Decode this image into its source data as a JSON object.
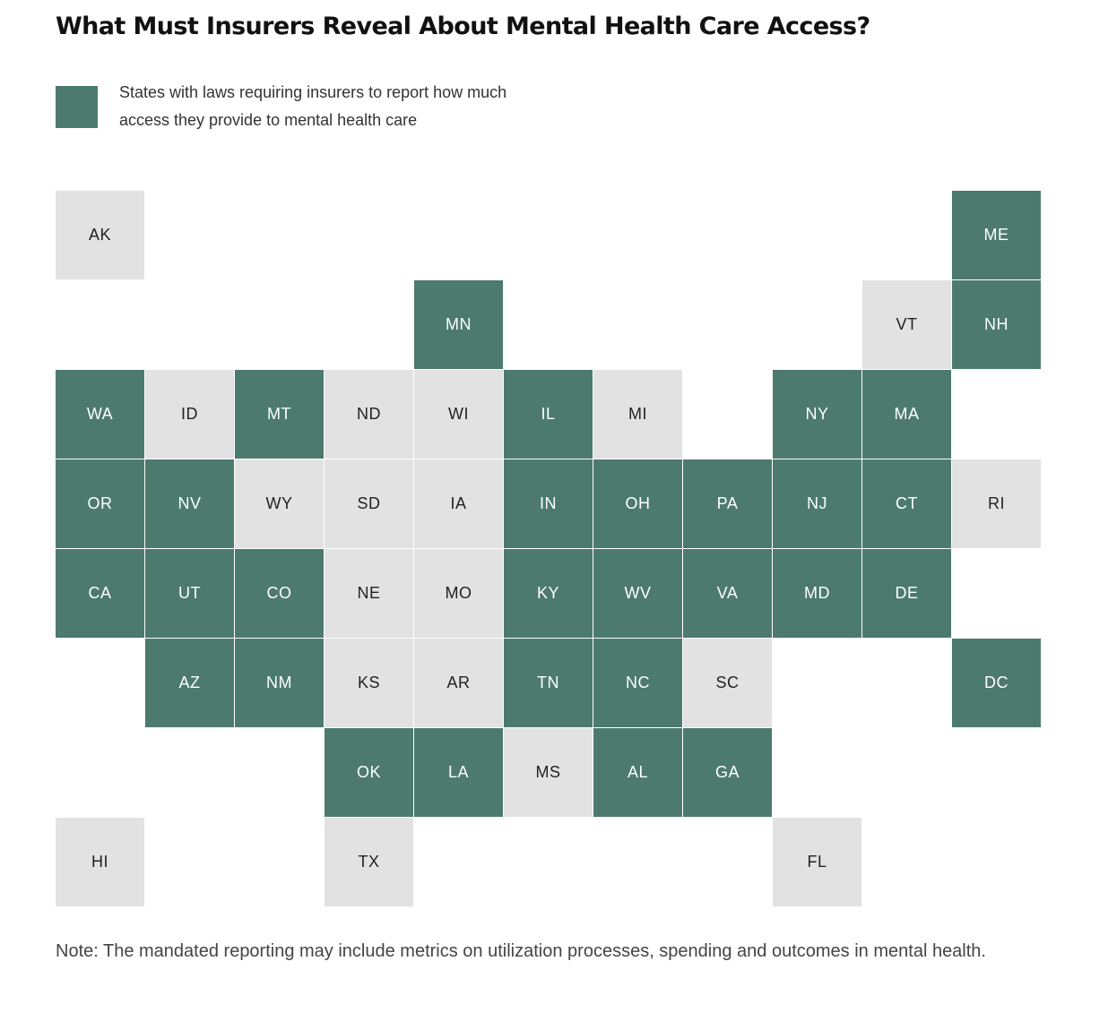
{
  "title": "What Must Insurers Reveal About Mental Health Care Access?",
  "legend": {
    "label": "States with laws requiring insurers to report how much access they provide to mental health care"
  },
  "colors": {
    "law": "#4c7a6e",
    "no_law": "#e2e2e2"
  },
  "states": [
    {
      "code": "AK",
      "law": false
    },
    {
      "code": "ME",
      "law": true
    },
    {
      "code": "MN",
      "law": true
    },
    {
      "code": "VT",
      "law": false
    },
    {
      "code": "NH",
      "law": true
    },
    {
      "code": "WA",
      "law": true
    },
    {
      "code": "ID",
      "law": false
    },
    {
      "code": "MT",
      "law": true
    },
    {
      "code": "ND",
      "law": false
    },
    {
      "code": "WI",
      "law": false
    },
    {
      "code": "IL",
      "law": true
    },
    {
      "code": "MI",
      "law": false
    },
    {
      "code": "NY",
      "law": true
    },
    {
      "code": "MA",
      "law": true
    },
    {
      "code": "OR",
      "law": true
    },
    {
      "code": "NV",
      "law": true
    },
    {
      "code": "WY",
      "law": false
    },
    {
      "code": "SD",
      "law": false
    },
    {
      "code": "IA",
      "law": false
    },
    {
      "code": "IN",
      "law": true
    },
    {
      "code": "OH",
      "law": true
    },
    {
      "code": "PA",
      "law": true
    },
    {
      "code": "NJ",
      "law": true
    },
    {
      "code": "CT",
      "law": true
    },
    {
      "code": "RI",
      "law": false
    },
    {
      "code": "CA",
      "law": true
    },
    {
      "code": "UT",
      "law": true
    },
    {
      "code": "CO",
      "law": true
    },
    {
      "code": "NE",
      "law": false
    },
    {
      "code": "MO",
      "law": false
    },
    {
      "code": "KY",
      "law": true
    },
    {
      "code": "WV",
      "law": true
    },
    {
      "code": "VA",
      "law": true
    },
    {
      "code": "MD",
      "law": true
    },
    {
      "code": "DE",
      "law": true
    },
    {
      "code": "AZ",
      "law": true
    },
    {
      "code": "NM",
      "law": true
    },
    {
      "code": "KS",
      "law": false
    },
    {
      "code": "AR",
      "law": false
    },
    {
      "code": "TN",
      "law": true
    },
    {
      "code": "NC",
      "law": true
    },
    {
      "code": "SC",
      "law": false
    },
    {
      "code": "DC",
      "law": true
    },
    {
      "code": "OK",
      "law": true
    },
    {
      "code": "LA",
      "law": true
    },
    {
      "code": "MS",
      "law": false
    },
    {
      "code": "AL",
      "law": true
    },
    {
      "code": "GA",
      "law": true
    },
    {
      "code": "HI",
      "law": false
    },
    {
      "code": "TX",
      "law": false
    },
    {
      "code": "FL",
      "law": false
    }
  ],
  "note": "Note: The mandated reporting may include metrics on utilization processes, spending and outcomes in mental health."
}
